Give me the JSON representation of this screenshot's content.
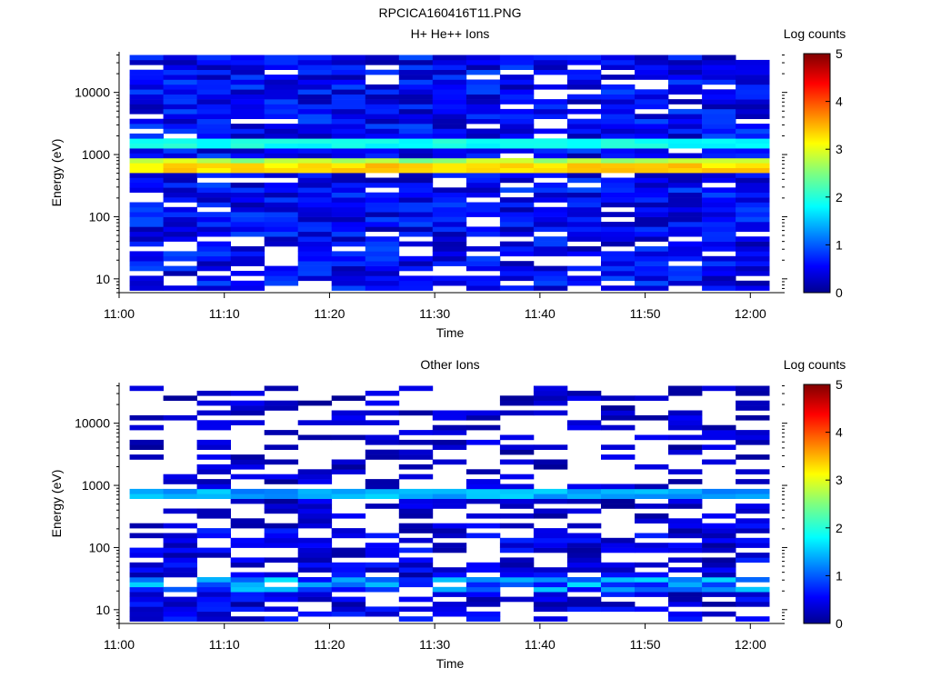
{
  "figure_title": "RPCICA160416T11.PNG",
  "chart_data": [
    {
      "type": "heatmap",
      "title": "H+ He++ Ions",
      "xlabel": "Time",
      "ylabel": "Energy (eV)",
      "x_ticks": [
        "11:00",
        "11:10",
        "11:20",
        "11:30",
        "11:40",
        "11:50",
        "12:00"
      ],
      "y_ticks": [
        "10",
        "100",
        "1000",
        "10000"
      ],
      "y_scale": "log",
      "ylim": [
        6,
        45000
      ],
      "xlim": [
        "11:00",
        "12:03"
      ],
      "time_bins": 19,
      "energy_bins": 48,
      "bin_width_min": 3.2,
      "colorbar": {
        "label": "Log counts",
        "range": [
          0,
          5
        ],
        "ticks": [
          "0",
          "1",
          "2",
          "3",
          "4",
          "5"
        ]
      },
      "features": [
        {
          "energy_eV": 650,
          "log_counts": 3.5,
          "description": "intense band"
        },
        {
          "energy_eV": 1500,
          "log_counts": 2.1,
          "description": "secondary band"
        }
      ]
    },
    {
      "type": "heatmap",
      "title": "Other Ions",
      "xlabel": "Time",
      "ylabel": "Energy (eV)",
      "x_ticks": [
        "11:00",
        "11:10",
        "11:20",
        "11:30",
        "11:40",
        "11:50",
        "12:00"
      ],
      "y_ticks": [
        "10",
        "100",
        "1000",
        "10000"
      ],
      "y_scale": "log",
      "ylim": [
        6,
        45000
      ],
      "xlim": [
        "11:00",
        "12:03"
      ],
      "time_bins": 19,
      "energy_bins": 48,
      "bin_width_min": 3.2,
      "colorbar": {
        "label": "Log counts",
        "range": [
          0,
          5
        ],
        "ticks": [
          "0",
          "1",
          "2",
          "3",
          "4",
          "5"
        ]
      },
      "features": [
        {
          "energy_eV": 700,
          "log_counts": 1.7,
          "description": "band"
        },
        {
          "energy_eV": 25,
          "log_counts": 1.8,
          "description": "low-energy band"
        }
      ]
    }
  ]
}
